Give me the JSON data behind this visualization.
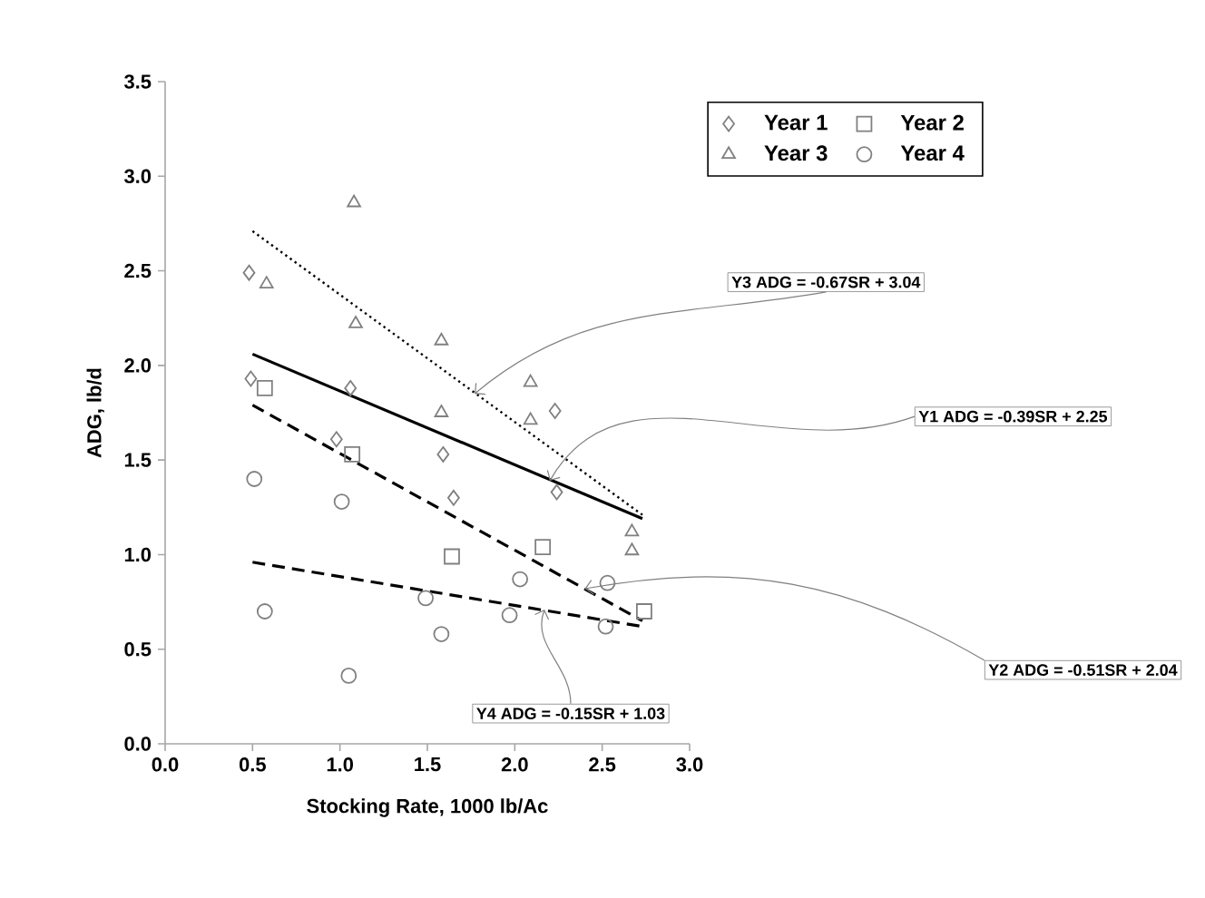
{
  "chart_data": {
    "type": "scatter",
    "xlabel": "Stocking Rate, 1000 lb/Ac",
    "ylabel": "ADG, lb/d",
    "xlim": [
      0,
      3.0
    ],
    "ylim": [
      0,
      3.5
    ],
    "xticks": [
      {
        "value": 0,
        "label": "0.0"
      },
      {
        "value": 0.5,
        "label": "0.5"
      },
      {
        "value": 1,
        "label": "1.0"
      },
      {
        "value": 1.5,
        "label": "1.5"
      },
      {
        "value": 2,
        "label": "2.0"
      },
      {
        "value": 2.5,
        "label": "2.5"
      },
      {
        "value": 3,
        "label": "3.0"
      }
    ],
    "yticks": [
      {
        "value": 0,
        "label": "0.0"
      },
      {
        "value": 0.5,
        "label": "0.5"
      },
      {
        "value": 1,
        "label": "1.0"
      },
      {
        "value": 1.5,
        "label": "1.5"
      },
      {
        "value": 2,
        "label": "2.0"
      },
      {
        "value": 2.5,
        "label": "2.5"
      },
      {
        "value": 3,
        "label": "3.0"
      },
      {
        "value": 3.5,
        "label": "3.5"
      }
    ],
    "legend": "top right",
    "series": [
      {
        "name": "Year 1",
        "color": "#808080",
        "marker": "diamond",
        "x": [
          0.48,
          0.49,
          0.98,
          1.06,
          1.59,
          1.65,
          2.23,
          2.24
        ],
        "values": [
          2.49,
          1.93,
          1.61,
          1.88,
          1.53,
          1.3,
          1.76,
          1.33
        ]
      },
      {
        "name": "Year 2",
        "color": "#808080",
        "marker": "square",
        "x": [
          0.57,
          1.07,
          1.64,
          2.16,
          2.74
        ],
        "values": [
          1.88,
          1.53,
          0.99,
          1.04,
          0.7
        ]
      },
      {
        "name": "Year 3",
        "color": "#808080",
        "marker": "triangle",
        "x": [
          0.58,
          1.08,
          1.09,
          1.58,
          1.58,
          2.09,
          2.09,
          2.67,
          2.67
        ],
        "values": [
          2.43,
          2.86,
          2.22,
          2.13,
          1.75,
          1.91,
          1.71,
          1.12,
          1.02
        ]
      },
      {
        "name": "Year 4",
        "color": "#808080",
        "marker": "circle",
        "x": [
          0.51,
          0.57,
          1.01,
          1.05,
          1.49,
          1.58,
          1.97,
          2.03,
          2.52,
          2.53
        ],
        "values": [
          1.4,
          0.7,
          1.28,
          0.36,
          0.77,
          0.58,
          0.68,
          0.87,
          0.62,
          0.85
        ]
      },
      {
        "type": "line",
        "color": "#000000",
        "line_style": "solid",
        "x": [
          0.5,
          2.73
        ],
        "values": [
          2.06,
          1.19
        ]
      },
      {
        "type": "line",
        "color": "#000000",
        "line_style": "dashed",
        "x": [
          0.5,
          2.73
        ],
        "values": [
          1.79,
          0.65
        ]
      },
      {
        "type": "line",
        "color": "#000000",
        "line_style": "dotted",
        "x": [
          0.5,
          2.73
        ],
        "values": [
          2.71,
          1.21
        ]
      },
      {
        "type": "line",
        "color": "#000000",
        "line_style": "dashed",
        "x": [
          0.5,
          2.73
        ],
        "values": [
          0.96,
          0.62
        ]
      }
    ],
    "annotations": [
      "Y3 ADG = -0.67SR + 3.04",
      {
        "text": "Y1 ADG = -0.39SR + 2.25",
        "x": 2.2,
        "y": 1.39
      },
      "Y2 ADG = -0.51SR + 2.04",
      {
        "text": "Y4 ADG = -0.15SR + 1.03",
        "x": 2.17,
        "y": 0.71
      }
    ]
  }
}
